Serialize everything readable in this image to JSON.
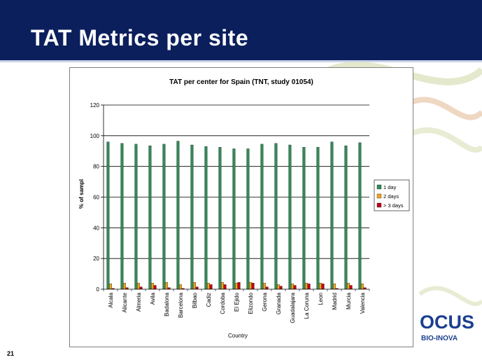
{
  "slide": {
    "title": "TAT Metrics per site",
    "page_number": "21",
    "logo_text": "OCUS",
    "logo_subtext": "BIO-INOVA"
  },
  "colors": {
    "header_bg": "#0b1f5c",
    "series_1day": "#2e8b57",
    "series_2days": "#f0a020",
    "series_3days": "#c0001a"
  },
  "chart_data": {
    "type": "bar",
    "title": "TAT per center for Spain (TNT, study 01054)",
    "xlabel": "Country",
    "ylabel": "% of sampl",
    "ylim": [
      0,
      120
    ],
    "yticks": [
      0,
      20,
      40,
      60,
      80,
      100,
      120
    ],
    "grid": true,
    "legend_position": "right",
    "categories": [
      "Alcala",
      "Alicante",
      "Almeria",
      "Avila",
      "Badalona",
      "Barcelona",
      "Bilbao",
      "Cadiz",
      "Cordoba",
      "El Ejido",
      "Elizondo",
      "Gerona",
      "Granada",
      "Guadalajara",
      "La Coruna",
      "Leon",
      "Madrid",
      "Murcia",
      "Valencia"
    ],
    "series": [
      {
        "name": "1 day",
        "color": "#2e8b57",
        "values": [
          96,
          95,
          94.5,
          93.5,
          94.5,
          96.5,
          94,
          93,
          92.5,
          91.5,
          91.5,
          94.5,
          95,
          94,
          92.5,
          92.5,
          96,
          93.5,
          95.5
        ]
      },
      {
        "name": "2 days",
        "color": "#f0a020",
        "values": [
          3.5,
          4,
          4,
          4,
          4.5,
          3,
          4.5,
          4,
          4.5,
          4,
          4.5,
          4,
          3,
          3.5,
          4,
          4,
          3.5,
          4,
          3.5
        ]
      },
      {
        "name": "> 3 days",
        "color": "#c0001a",
        "values": [
          0.5,
          1,
          1.5,
          2.5,
          1,
          0.5,
          1.5,
          3,
          3,
          4.5,
          4,
          1.5,
          2,
          2.5,
          3.5,
          3.5,
          0.5,
          2.5,
          1
        ]
      }
    ]
  }
}
